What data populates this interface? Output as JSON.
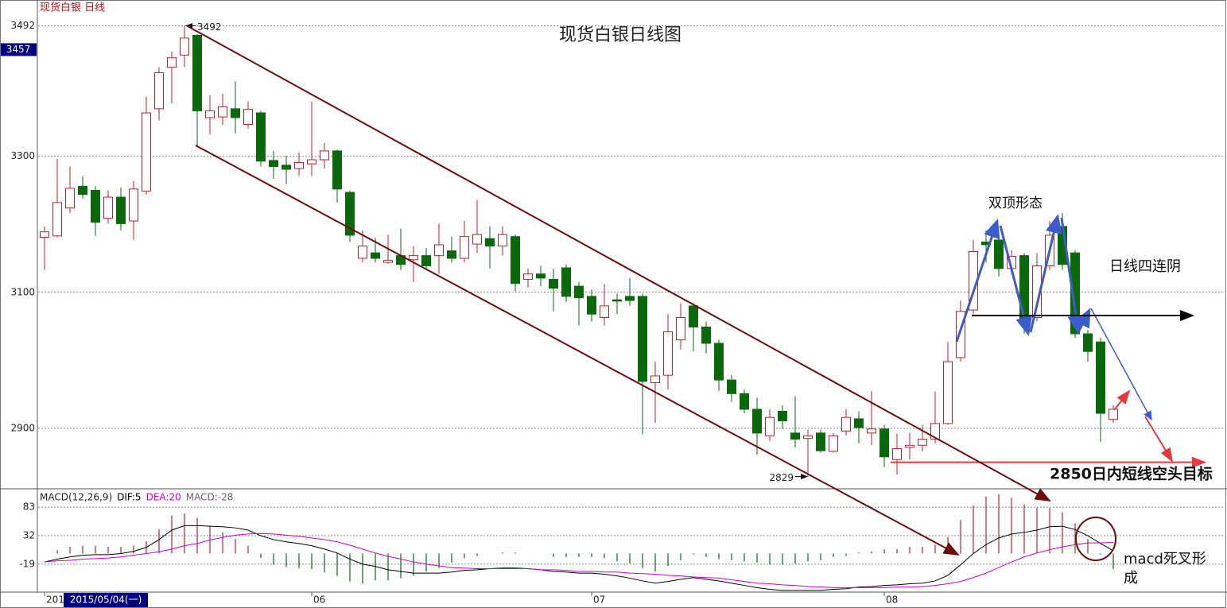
{
  "chart_data": [
    {
      "type": "candlestick",
      "title": "现货白银日线图",
      "label": "现货白银  日线",
      "open": [
        3181,
        3183,
        3224,
        3256,
        3250,
        3209,
        3240,
        3205,
        3249,
        3370,
        3431,
        3449,
        3478,
        3357,
        3358,
        3370,
        3347,
        3364,
        3294,
        3287,
        3282,
        3289,
        3295,
        3308,
        3247,
        3150,
        3158,
        3144,
        3154,
        3148,
        3154,
        3154,
        3161,
        3150,
        3171,
        3179,
        3168,
        3182,
        3119,
        3127,
        3119,
        3136,
        3109,
        3094,
        3063,
        3089,
        3094,
        3094,
        2967,
        2978,
        3030,
        3080,
        3049,
        3025,
        2971,
        2951,
        2928,
        2889,
        2925,
        2893,
        2885,
        2893,
        2866,
        2896,
        2914,
        2893,
        2899,
        2854,
        2872,
        2875,
        2884,
        2907,
        3004,
        3074,
        3174,
        3177,
        3135,
        3154,
        3063,
        3139,
        3197,
        3158,
        3039,
        3027,
        2913
      ],
      "high": [
        3197,
        3296,
        3285,
        3271,
        3256,
        3250,
        3254,
        3264,
        3388,
        3431,
        3454,
        3492,
        3480,
        3390,
        3392,
        3410,
        3381,
        3367,
        3308,
        3301,
        3306,
        3381,
        3320,
        3310,
        3250,
        3191,
        3180,
        3185,
        3194,
        3168,
        3165,
        3201,
        3182,
        3205,
        3236,
        3197,
        3197,
        3185,
        3135,
        3139,
        3135,
        3141,
        3115,
        3104,
        3112,
        3098,
        3121,
        3098,
        2998,
        3068,
        3084,
        3084,
        3057,
        3030,
        2978,
        2957,
        2945,
        2928,
        2934,
        2947,
        2898,
        2898,
        2893,
        2928,
        2925,
        2955,
        2905,
        2892,
        2893,
        2905,
        2954,
        3027,
        3088,
        3177,
        3191,
        3191,
        3162,
        3158,
        3158,
        3205,
        3217,
        3162,
        3045,
        3033,
        2934
      ],
      "low": [
        3133,
        3181,
        3217,
        3238,
        3183,
        3201,
        3191,
        3177,
        3244,
        3353,
        3378,
        3431,
        3316,
        3332,
        3346,
        3334,
        3341,
        3285,
        3267,
        3259,
        3271,
        3271,
        3282,
        3232,
        3174,
        3144,
        3144,
        3142,
        3133,
        3115,
        3133,
        3127,
        3144,
        3144,
        3158,
        3135,
        3154,
        3101,
        3107,
        3109,
        3072,
        3086,
        3051,
        3057,
        3051,
        3068,
        3080,
        2891,
        2908,
        2957,
        3016,
        3013,
        3010,
        2955,
        2939,
        2922,
        2861,
        2881,
        2899,
        2872,
        2829,
        2864,
        2864,
        2889,
        2878,
        2875,
        2843,
        2832,
        2854,
        2866,
        2878,
        2905,
        2998,
        3068,
        3144,
        3123,
        3127,
        3039,
        3057,
        3133,
        3133,
        3033,
        2998,
        2880,
        2908
      ],
      "close": [
        3189,
        3232,
        3253,
        3244,
        3203,
        3240,
        3201,
        3252,
        3364,
        3423,
        3445,
        3474,
        3367,
        3367,
        3373,
        3357,
        3369,
        3293,
        3285,
        3281,
        3291,
        3295,
        3308,
        3252,
        3184,
        3168,
        3150,
        3147,
        3141,
        3154,
        3139,
        3170,
        3150,
        3182,
        3185,
        3168,
        3185,
        3113,
        3127,
        3121,
        3106,
        3094,
        3092,
        3068,
        3080,
        3087,
        3088,
        2969,
        2977,
        3042,
        3063,
        3049,
        3025,
        2971,
        2951,
        2928,
        2893,
        2916,
        2911,
        2884,
        2889,
        2867,
        2889,
        2916,
        2901,
        2899,
        2858,
        2870,
        2875,
        2884,
        2907,
        2998,
        3072,
        3160,
        3170,
        3135,
        3153,
        3060,
        3139,
        3184,
        3141,
        3039,
        3013,
        2922,
        2928
      ],
      "up_color": "#b3262a",
      "down_color": "#0a690a",
      "ylim": [
        2811,
        3530
      ],
      "yticks": [
        2900,
        3100,
        3300,
        3492
      ],
      "grid": true,
      "cursor_price": 3457,
      "target_level": 2850,
      "annotations": [
        "双顶形态",
        "日线四连阴",
        "2850日内短线空头目标"
      ]
    },
    {
      "type": "macd",
      "indicator": "MACD(12,26,9)",
      "categories": [
        "201",
        null,
        null,
        null,
        null,
        null,
        null,
        null,
        null,
        null,
        null,
        null,
        null,
        null,
        null,
        null,
        null,
        null,
        null,
        null,
        null,
        "06",
        null,
        null,
        null,
        null,
        null,
        null,
        null,
        null,
        null,
        null,
        null,
        null,
        null,
        null,
        null,
        null,
        null,
        null,
        null,
        null,
        null,
        "07",
        null,
        null,
        null,
        null,
        null,
        null,
        null,
        null,
        null,
        null,
        null,
        null,
        null,
        null,
        null,
        null,
        null,
        null,
        null,
        null,
        null,
        null,
        "08",
        null,
        null,
        null,
        null,
        null,
        null,
        null,
        null,
        null,
        null,
        null,
        null,
        null,
        null,
        null,
        null,
        null,
        null
      ],
      "series": [
        {
          "name": "DIF:5",
          "color": "#000000",
          "values": [
            -15,
            -10,
            -6,
            -3,
            -2,
            -2,
            0,
            4,
            11,
            25,
            42,
            50,
            50,
            49,
            48,
            46,
            42,
            32,
            25,
            21,
            18,
            14,
            8,
            1,
            -10,
            -19,
            -23,
            -29,
            -32,
            -35,
            -35,
            -35,
            -33,
            -30,
            -29,
            -27,
            -26,
            -26,
            -27,
            -29,
            -32,
            -33,
            -35,
            -35,
            -37,
            -40,
            -44,
            -49,
            -53,
            -50,
            -46,
            -43,
            -46,
            -49,
            -53,
            -57,
            -61,
            -64,
            -66,
            -66,
            -66,
            -66,
            -64,
            -63,
            -60,
            -59,
            -57,
            -56,
            -54,
            -53,
            -49,
            -39,
            -20,
            0,
            16,
            28,
            35,
            38,
            42,
            48,
            49,
            43,
            32,
            18,
            5
          ]
        },
        {
          "name": "DEA:20",
          "color": "#cc00cc",
          "values": [
            -15,
            -13,
            -12,
            -10,
            -9,
            -8,
            -6,
            -3,
            0,
            3,
            8,
            14,
            18,
            24,
            29,
            33,
            35,
            36,
            35,
            33,
            31,
            28,
            25,
            21,
            15,
            8,
            1,
            -5,
            -10,
            -15,
            -19,
            -22,
            -25,
            -26,
            -27,
            -27,
            -27,
            -27,
            -27,
            -29,
            -29,
            -30,
            -32,
            -32,
            -33,
            -33,
            -35,
            -36,
            -37,
            -39,
            -40,
            -42,
            -43,
            -44,
            -47,
            -50,
            -53,
            -54,
            -56,
            -57,
            -59,
            -60,
            -61,
            -61,
            -61,
            -61,
            -61,
            -60,
            -60,
            -59,
            -57,
            -54,
            -50,
            -43,
            -35,
            -25,
            -15,
            -6,
            1,
            7,
            12,
            16,
            19,
            19,
            20
          ]
        },
        {
          "name": "MACD:-28",
          "color": "#7a5a7a",
          "up_color": "#b3262a",
          "down_color": "#0a690a",
          "values": [
            0,
            6,
            12,
            14,
            14,
            12,
            12,
            14,
            22,
            44,
            68,
            72,
            64,
            50,
            38,
            26,
            14,
            -8,
            -20,
            -24,
            -26,
            -28,
            -34,
            -40,
            -50,
            -54,
            -48,
            -48,
            -44,
            -40,
            -32,
            -26,
            -16,
            -8,
            -4,
            0,
            2,
            2,
            0,
            0,
            -6,
            -6,
            -6,
            -6,
            -8,
            -14,
            -18,
            -26,
            -32,
            -22,
            -12,
            -2,
            -6,
            -10,
            -12,
            -14,
            -16,
            -20,
            -20,
            -18,
            -14,
            -12,
            -6,
            -4,
            2,
            4,
            8,
            8,
            12,
            12,
            16,
            30,
            60,
            86,
            102,
            106,
            100,
            88,
            82,
            82,
            74,
            54,
            26,
            -2,
            -28
          ]
        }
      ],
      "ylim": [
        -69,
        116
      ],
      "yticks": [
        -19,
        32,
        83
      ],
      "grid": true,
      "cursor_label": "2015/05/04(一)",
      "annotation": "macd死叉形成"
    }
  ]
}
